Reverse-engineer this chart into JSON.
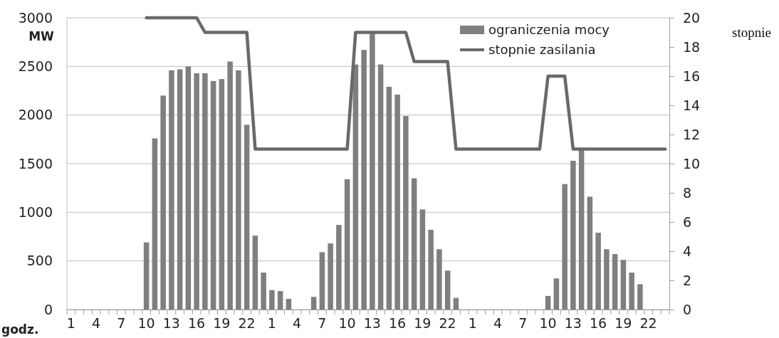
{
  "chart_data": {
    "type": "bar",
    "xlabel": "godz.",
    "ylabel": "MW",
    "y2label": "stopnie",
    "categories": [
      "1",
      null,
      null,
      "4",
      null,
      null,
      "7",
      null,
      null,
      "10",
      null,
      null,
      "13",
      null,
      null,
      "16",
      null,
      null,
      "19",
      null,
      null,
      "22",
      null,
      null,
      "1",
      null,
      null,
      "4",
      null,
      null,
      "7",
      null,
      null,
      "10",
      null,
      null,
      "13",
      null,
      null,
      "16",
      null,
      null,
      "19",
      null,
      null,
      "22",
      null,
      null,
      "1",
      null,
      null,
      "4",
      null,
      null,
      "7",
      null,
      null,
      "10",
      null,
      null,
      "13",
      null,
      null,
      "16",
      null,
      null,
      "19",
      null,
      null,
      "22",
      null,
      null
    ],
    "series": [
      {
        "name": "ograniczenia mocy",
        "color": "#7f7f7f",
        "values": [
          0,
          0,
          0,
          0,
          0,
          0,
          0,
          0,
          0,
          690,
          1760,
          2200,
          2460,
          2470,
          2500,
          2430,
          2430,
          2350,
          2370,
          2550,
          2460,
          1900,
          760,
          380,
          200,
          190,
          110,
          0,
          0,
          130,
          590,
          680,
          870,
          1340,
          2520,
          2670,
          2850,
          2520,
          2290,
          2210,
          1990,
          1350,
          1030,
          820,
          620,
          400,
          120,
          0,
          0,
          0,
          0,
          0,
          0,
          0,
          0,
          0,
          0,
          140,
          320,
          1290,
          1530,
          1640,
          1160,
          790,
          620,
          570,
          510,
          380,
          260,
          0,
          0,
          0
        ]
      },
      {
        "name": "stopnie zasilania",
        "type": "line",
        "axis": "y2",
        "color": "#696969",
        "values": [
          null,
          null,
          null,
          null,
          null,
          null,
          null,
          null,
          null,
          20,
          20,
          20,
          20,
          20,
          20,
          20,
          19,
          19,
          19,
          19,
          19,
          19,
          11,
          11,
          11,
          11,
          11,
          11,
          11,
          11,
          11,
          11,
          11,
          11,
          19,
          19,
          19,
          19,
          19,
          19,
          19,
          17,
          17,
          17,
          17,
          17,
          11,
          11,
          11,
          11,
          11,
          11,
          11,
          11,
          11,
          11,
          11,
          16,
          16,
          16,
          11,
          11,
          11,
          11,
          11,
          11,
          11,
          11,
          11,
          11,
          11,
          11
        ]
      }
    ],
    "ylim": [
      0,
      3000
    ],
    "yticks": [
      0,
      500,
      1000,
      1500,
      2000,
      2500,
      3000
    ],
    "y2lim": [
      0,
      20
    ],
    "y2ticks": [
      0,
      2,
      4,
      6,
      8,
      10,
      12,
      14,
      16,
      18,
      20
    ],
    "grid": "y",
    "legend": "top right"
  }
}
